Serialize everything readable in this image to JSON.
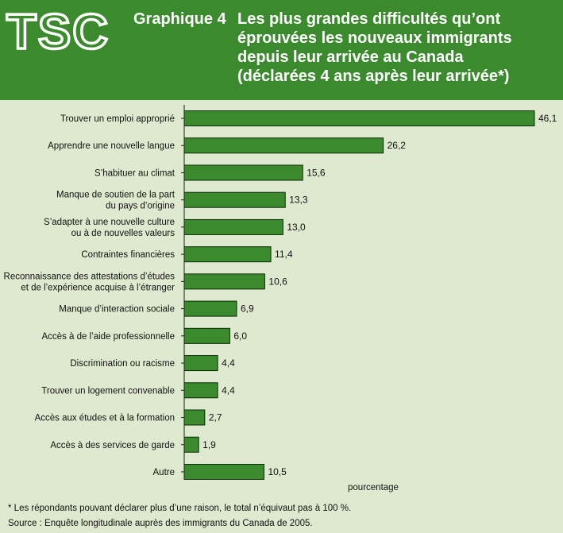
{
  "header": {
    "logo_text": "TSC",
    "title_prefix": "Graphique 4",
    "title_lines": [
      "Les plus grandes difficultés qu’ont",
      "éprouvées les nouveaux immigrants",
      "depuis leur arrivée au Canada",
      "(déclarées 4 ans après leur arrivée*)"
    ]
  },
  "colors": {
    "header_bg": "#3c8a2e",
    "panel_bg": "#dfe9cf",
    "bar_fill": "#3c8a2e",
    "bar_stroke": "#0b2a08"
  },
  "chart_data": {
    "type": "bar",
    "orientation": "horizontal",
    "categories": [
      [
        "Trouver un emploi approprié"
      ],
      [
        "Apprendre une nouvelle langue"
      ],
      [
        "S’habituer au climat"
      ],
      [
        "Manque de soutien de la part",
        "du pays d’origine"
      ],
      [
        "S’adapter à une nouvelle culture",
        "ou à de nouvelles valeurs"
      ],
      [
        "Contraintes financières"
      ],
      [
        "Reconnaissance des attestations d’études",
        "et de l’expérience acquise à l’étranger"
      ],
      [
        "Manque d’interaction sociale"
      ],
      [
        "Accès à de l’aide professionnelle"
      ],
      [
        "Discrimination ou racisme"
      ],
      [
        "Trouver un logement convenable"
      ],
      [
        "Accès aux études et à la formation"
      ],
      [
        "Accès à des services de garde"
      ],
      [
        "Autre"
      ]
    ],
    "values": [
      46.1,
      26.2,
      15.6,
      13.3,
      13.0,
      11.4,
      10.6,
      6.9,
      6.0,
      4.4,
      4.4,
      2.7,
      1.9,
      10.5
    ],
    "value_labels": [
      "46,1",
      "26,2",
      "15,6",
      "13,3",
      "13,0",
      "11,4",
      "10,6",
      "6,9",
      "6,0",
      "4,4",
      "4,4",
      "2,7",
      "1,9",
      "10,5"
    ],
    "xlabel": "pourcentage",
    "xlim": [
      0,
      46.1
    ]
  },
  "footnote": "* Les répondants pouvant déclarer plus d’une raison, le total n’équivaut pas à 100 %.",
  "source": "Source : Enquête longitudinale auprès des immigrants du Canada de 2005."
}
